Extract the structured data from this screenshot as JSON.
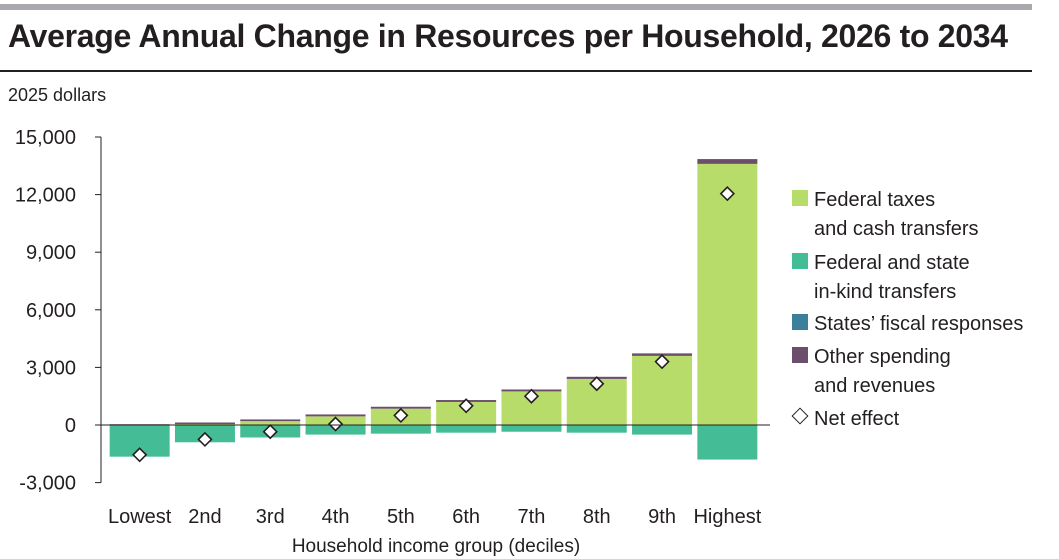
{
  "title": "Average Annual Change in Resources per Household, 2026 to 2034",
  "units_label": "2025 dollars",
  "colors": {
    "federal_taxes": "#b8dc6a",
    "in_kind": "#44bc96",
    "states_fiscal": "#3c7f99",
    "other": "#6b4e6b",
    "net_marker": "#ffffff"
  },
  "legend": {
    "federal_taxes": [
      "Federal taxes",
      "and cash transfers"
    ],
    "in_kind": [
      "Federal and state",
      "in-kind transfers"
    ],
    "states_fiscal": [
      "States’ fiscal responses"
    ],
    "other": [
      "Other spending",
      "and revenues"
    ],
    "net": [
      "Net effect"
    ]
  },
  "chart_data": {
    "type": "bar",
    "stacked": true,
    "title": "Average Annual Change in Resources per Household, 2026 to 2034",
    "ylabel": "2025 dollars",
    "xlabel": "Household income group (deciles)",
    "ylim": [
      -3000,
      15000
    ],
    "yticks": [
      15000,
      12000,
      9000,
      6000,
      3000,
      0,
      -3000
    ],
    "ytick_labels": [
      "15,000",
      "12,000",
      "9,000",
      "6,000",
      "3,000",
      "0",
      "-3,000"
    ],
    "categories": [
      "Lowest",
      "2nd",
      "3rd",
      "4th",
      "5th",
      "6th",
      "7th",
      "8th",
      "9th",
      "Highest"
    ],
    "series": [
      {
        "name": "Federal taxes and cash transfers",
        "key": "federal_taxes",
        "values": [
          0,
          50,
          200,
          450,
          850,
          1200,
          1750,
          2400,
          3600,
          13600
        ]
      },
      {
        "name": "Federal and state in-kind transfers",
        "key": "in_kind",
        "values": [
          -1650,
          -900,
          -650,
          -500,
          -450,
          -400,
          -350,
          -400,
          -500,
          -1800
        ]
      },
      {
        "name": "States’ fiscal responses",
        "key": "states_fiscal",
        "values": [
          0,
          0,
          0,
          0,
          0,
          0,
          0,
          0,
          0,
          0
        ]
      },
      {
        "name": "Other spending and revenues",
        "key": "other",
        "values": [
          40,
          80,
          90,
          100,
          100,
          100,
          100,
          110,
          130,
          250
        ]
      }
    ],
    "net_effect": {
      "name": "Net effect",
      "values": [
        -1550,
        -750,
        -350,
        50,
        500,
        1000,
        1500,
        2150,
        3300,
        12050
      ]
    },
    "legend_position": "right",
    "grid": false
  }
}
